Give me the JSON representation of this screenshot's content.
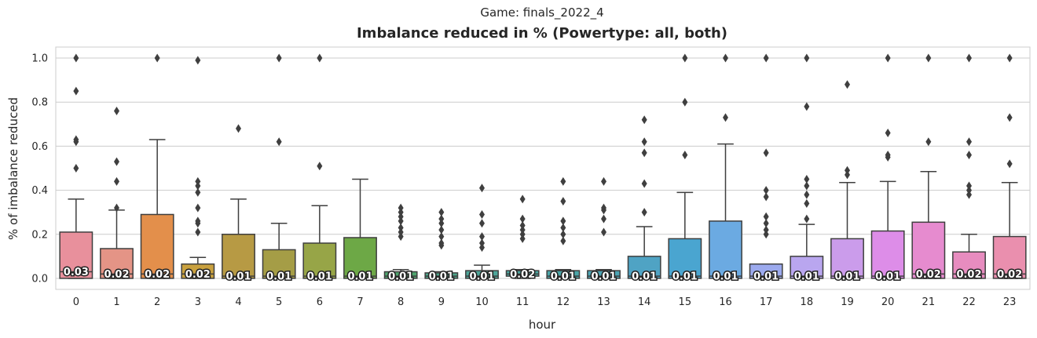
{
  "suptitle": "Game: finals_2022_4",
  "chart_data": {
    "type": "box",
    "title": "Imbalance reduced in % (Powertype: all, both)",
    "xlabel": "hour",
    "ylabel": "% of imbalance reduced",
    "ylim": [
      -0.05,
      1.05
    ],
    "yticks": [
      "0.0",
      "0.2",
      "0.4",
      "0.6",
      "0.8",
      "1.0"
    ],
    "grid": true,
    "categories": [
      "0",
      "1",
      "2",
      "3",
      "4",
      "5",
      "6",
      "7",
      "8",
      "9",
      "10",
      "11",
      "12",
      "13",
      "14",
      "15",
      "16",
      "17",
      "18",
      "19",
      "20",
      "21",
      "22",
      "23"
    ],
    "boxes": [
      {
        "color": "#E8909C",
        "q1": 0.0,
        "median": 0.03,
        "q3": 0.21,
        "whislo": 0.0,
        "whishi": 0.36,
        "fliers": [
          0.5,
          0.62,
          0.63,
          0.85,
          1.0
        ],
        "label": "0.03"
      },
      {
        "color": "#E49486",
        "q1": 0.0,
        "median": 0.02,
        "q3": 0.135,
        "whislo": 0.0,
        "whishi": 0.31,
        "fliers": [
          0.32,
          0.44,
          0.53,
          0.76
        ],
        "label": "0.02"
      },
      {
        "color": "#E38F4B",
        "q1": 0.0,
        "median": 0.02,
        "q3": 0.29,
        "whislo": 0.0,
        "whishi": 0.63,
        "fliers": [
          1.0
        ],
        "label": "0.02"
      },
      {
        "color": "#C9A13F",
        "q1": 0.0,
        "median": 0.02,
        "q3": 0.065,
        "whislo": 0.0,
        "whishi": 0.095,
        "fliers": [
          0.21,
          0.25,
          0.26,
          0.32,
          0.39,
          0.42,
          0.44,
          0.99
        ],
        "label": "0.02"
      },
      {
        "color": "#B79A44",
        "q1": 0.0,
        "median": 0.01,
        "q3": 0.2,
        "whislo": 0.0,
        "whishi": 0.36,
        "fliers": [
          0.68
        ],
        "label": "0.01"
      },
      {
        "color": "#A59D46",
        "q1": 0.0,
        "median": 0.01,
        "q3": 0.13,
        "whislo": 0.0,
        "whishi": 0.25,
        "fliers": [
          0.62,
          1.0
        ],
        "label": "0.01"
      },
      {
        "color": "#97A547",
        "q1": 0.0,
        "median": 0.01,
        "q3": 0.16,
        "whislo": 0.0,
        "whishi": 0.33,
        "fliers": [
          0.51,
          1.0
        ],
        "label": "0.01"
      },
      {
        "color": "#6DA846",
        "q1": 0.0,
        "median": 0.01,
        "q3": 0.185,
        "whislo": 0.0,
        "whishi": 0.45,
        "fliers": [],
        "label": "0.01"
      },
      {
        "color": "#4FA66E",
        "q1": 0.0,
        "median": 0.01,
        "q3": 0.03,
        "whislo": 0.0,
        "whishi": 0.04,
        "fliers": [
          0.19,
          0.21,
          0.23,
          0.26,
          0.28,
          0.3,
          0.32
        ],
        "label": "0.01"
      },
      {
        "color": "#4CA589",
        "q1": 0.0,
        "median": 0.01,
        "q3": 0.025,
        "whislo": 0.0,
        "whishi": 0.03,
        "fliers": [
          0.15,
          0.16,
          0.19,
          0.22,
          0.25,
          0.27,
          0.3
        ],
        "label": "0.01"
      },
      {
        "color": "#4DA599",
        "q1": 0.0,
        "median": 0.01,
        "q3": 0.035,
        "whislo": 0.0,
        "whishi": 0.06,
        "fliers": [
          0.14,
          0.16,
          0.19,
          0.25,
          0.29,
          0.41
        ],
        "label": "0.01"
      },
      {
        "color": "#4BA6A0",
        "q1": 0.01,
        "median": 0.02,
        "q3": 0.035,
        "whislo": 0.0,
        "whishi": 0.04,
        "fliers": [
          0.18,
          0.2,
          0.22,
          0.24,
          0.27,
          0.36
        ],
        "label": "0.02"
      },
      {
        "color": "#4BA5A8",
        "q1": 0.0,
        "median": 0.01,
        "q3": 0.035,
        "whislo": 0.0,
        "whishi": 0.04,
        "fliers": [
          0.17,
          0.2,
          0.23,
          0.26,
          0.35,
          0.44
        ],
        "label": "0.01"
      },
      {
        "color": "#4CA4B4",
        "q1": 0.0,
        "median": 0.01,
        "q3": 0.035,
        "whislo": 0.0,
        "whishi": 0.04,
        "fliers": [
          0.21,
          0.27,
          0.31,
          0.32,
          0.44
        ],
        "label": "0.01"
      },
      {
        "color": "#4FA3C4",
        "q1": 0.0,
        "median": 0.01,
        "q3": 0.1,
        "whislo": 0.0,
        "whishi": 0.235,
        "fliers": [
          0.3,
          0.43,
          0.57,
          0.62,
          0.72
        ],
        "label": "0.01"
      },
      {
        "color": "#4AA5D0",
        "q1": 0.0,
        "median": 0.01,
        "q3": 0.18,
        "whislo": 0.0,
        "whishi": 0.39,
        "fliers": [
          0.56,
          0.8,
          1.0
        ],
        "label": "0.01"
      },
      {
        "color": "#6BAAE2",
        "q1": 0.0,
        "median": 0.01,
        "q3": 0.26,
        "whislo": 0.0,
        "whishi": 0.61,
        "fliers": [
          0.73,
          1.0
        ],
        "label": "0.01"
      },
      {
        "color": "#9CAAEE",
        "q1": 0.0,
        "median": 0.01,
        "q3": 0.065,
        "whislo": 0.0,
        "whishi": 0.065,
        "fliers": [
          0.2,
          0.22,
          0.25,
          0.28,
          0.37,
          0.4,
          0.57,
          1.0
        ],
        "label": "0.01"
      },
      {
        "color": "#B9A6EF",
        "q1": 0.0,
        "median": 0.01,
        "q3": 0.1,
        "whislo": 0.0,
        "whishi": 0.245,
        "fliers": [
          0.27,
          0.34,
          0.38,
          0.42,
          0.45,
          0.78,
          1.0
        ],
        "label": "0.01"
      },
      {
        "color": "#CB9CEB",
        "q1": 0.0,
        "median": 0.01,
        "q3": 0.18,
        "whislo": 0.0,
        "whishi": 0.435,
        "fliers": [
          0.47,
          0.49,
          0.88
        ],
        "label": "0.01"
      },
      {
        "color": "#DD8DE8",
        "q1": 0.0,
        "median": 0.01,
        "q3": 0.215,
        "whislo": 0.0,
        "whishi": 0.44,
        "fliers": [
          0.55,
          0.56,
          0.66,
          1.0
        ],
        "label": "0.01"
      },
      {
        "color": "#E68BCF",
        "q1": 0.0,
        "median": 0.02,
        "q3": 0.255,
        "whislo": 0.0,
        "whishi": 0.485,
        "fliers": [
          0.62,
          1.0
        ],
        "label": "0.02"
      },
      {
        "color": "#E78CBF",
        "q1": 0.0,
        "median": 0.02,
        "q3": 0.12,
        "whislo": 0.0,
        "whishi": 0.2,
        "fliers": [
          0.38,
          0.4,
          0.42,
          0.56,
          0.62,
          1.0
        ],
        "label": "0.02"
      },
      {
        "color": "#EA8FAE",
        "q1": 0.0,
        "median": 0.02,
        "q3": 0.19,
        "whislo": 0.0,
        "whishi": 0.435,
        "fliers": [
          0.52,
          0.73,
          1.0
        ],
        "label": "0.02"
      }
    ]
  }
}
